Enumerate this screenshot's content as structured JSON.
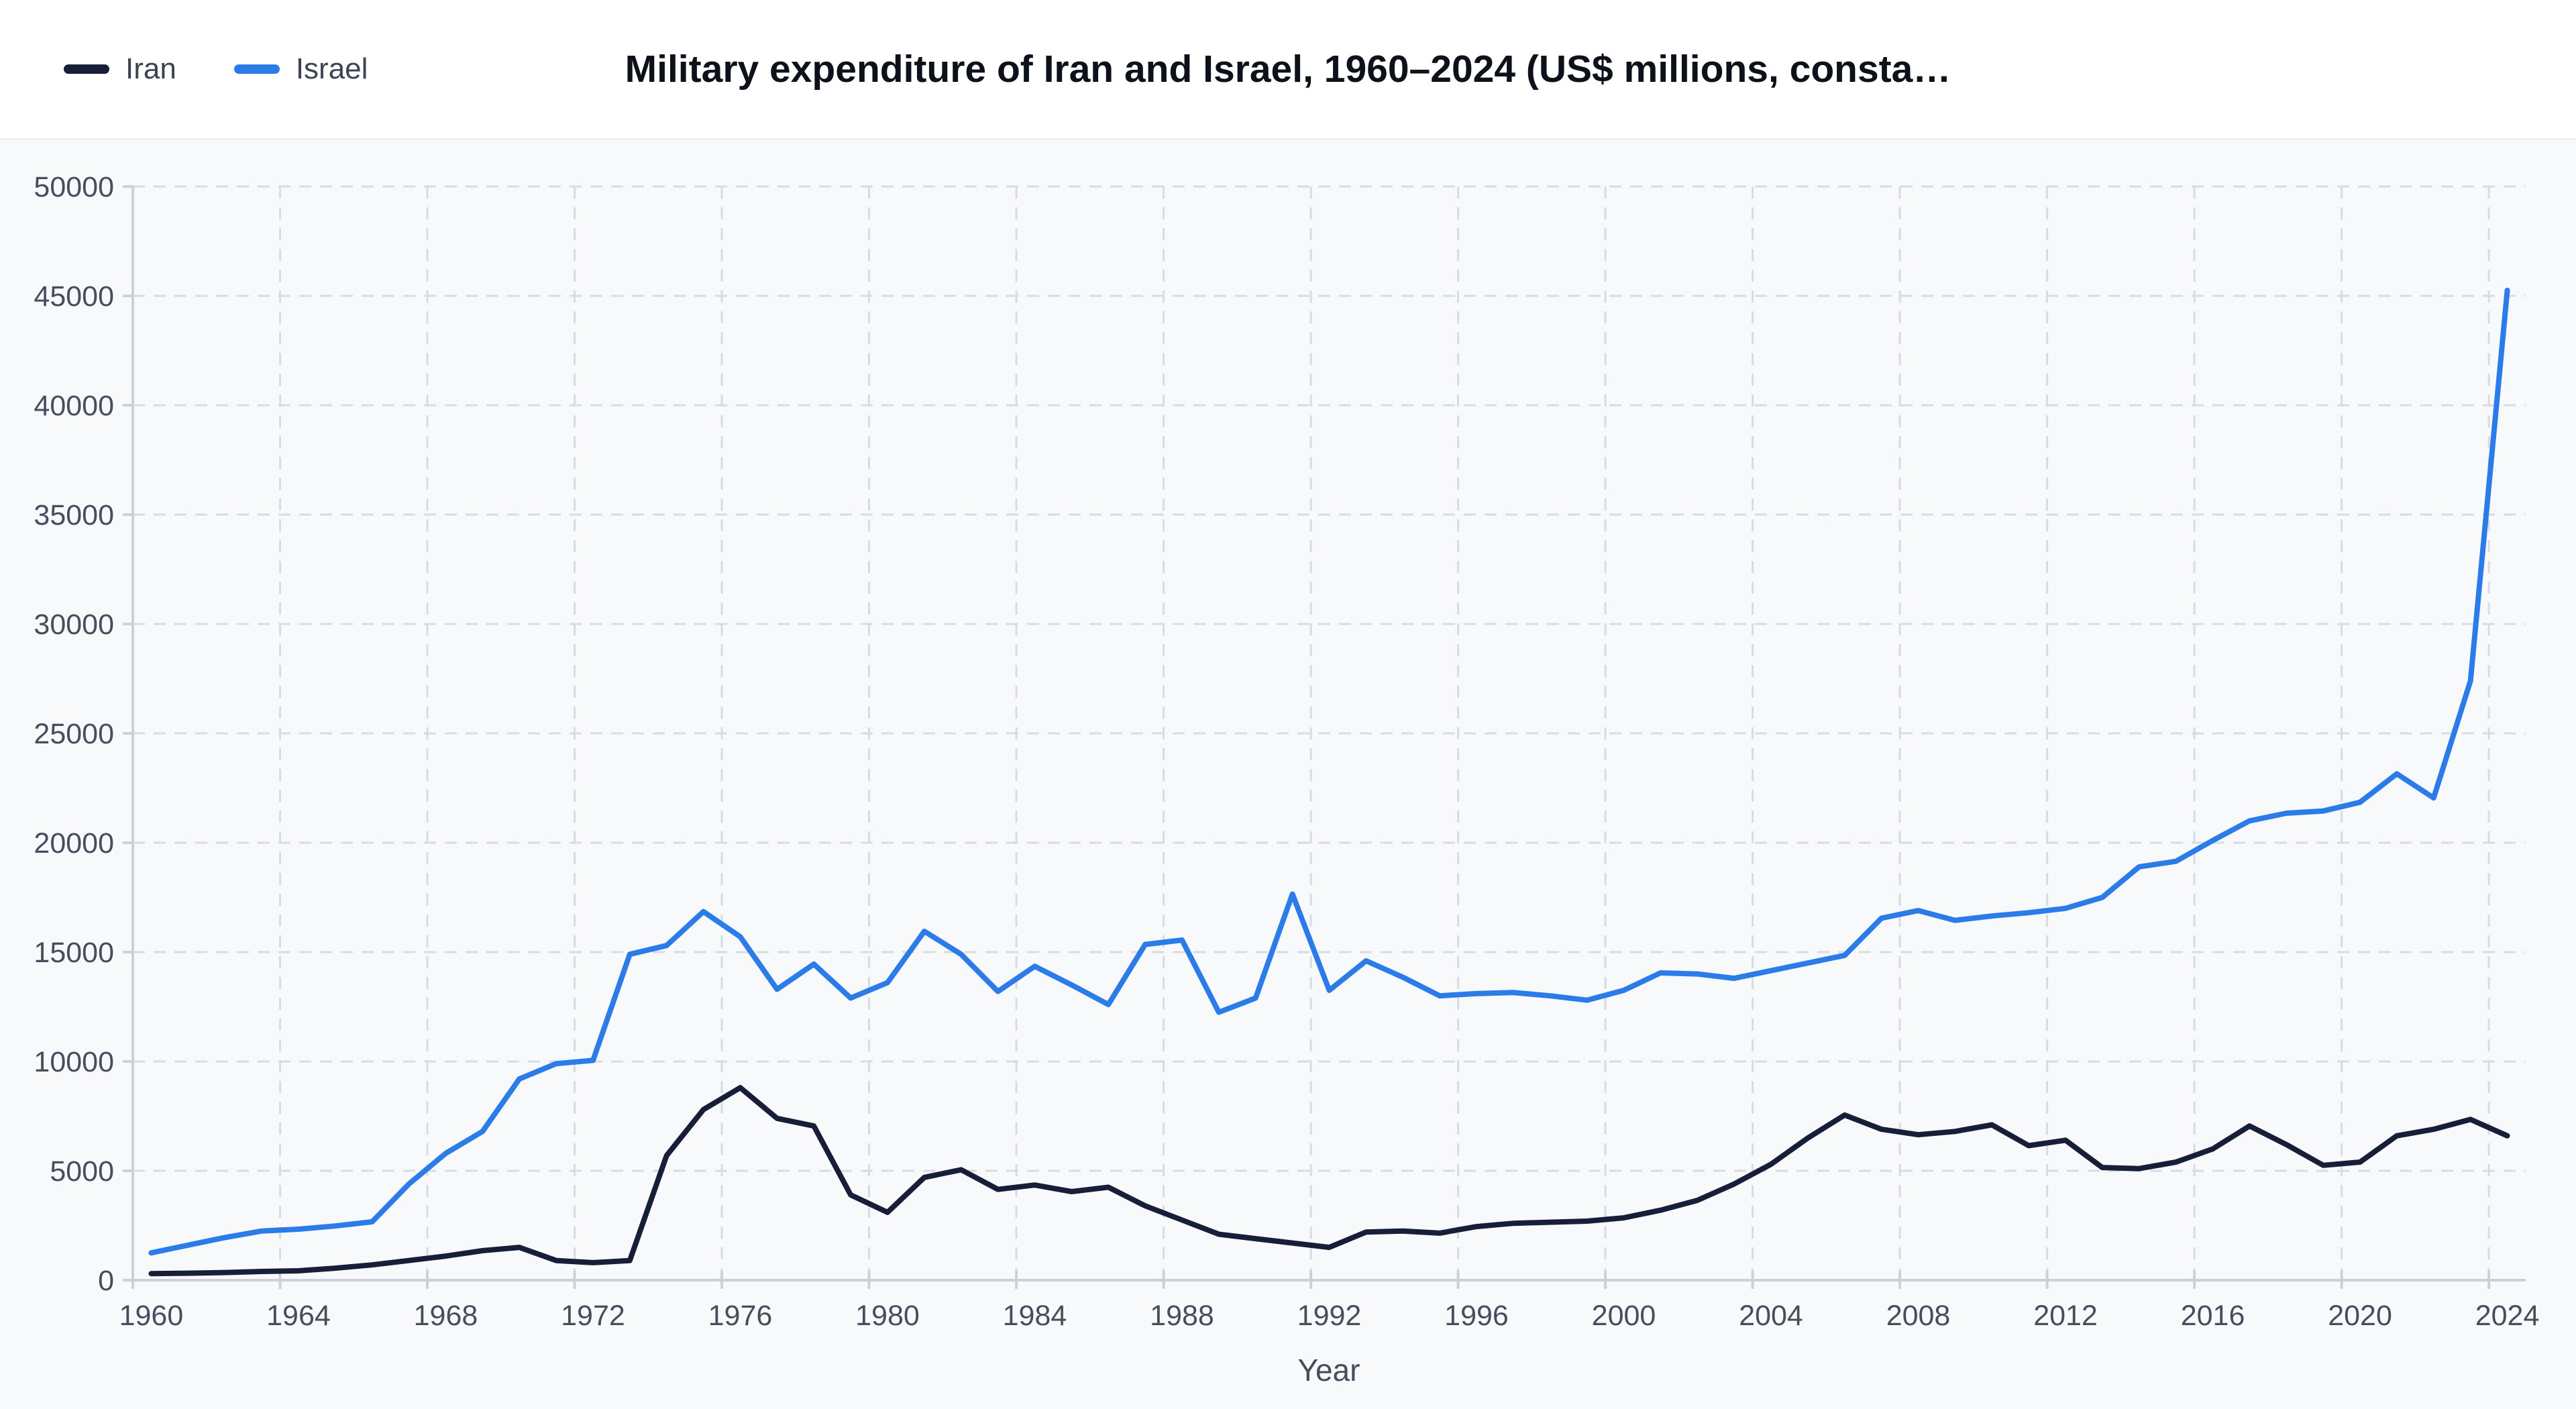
{
  "header": {
    "title": "Military expenditure of Iran and Israel, 1960–2024 (US$ millions, consta…"
  },
  "legend": [
    {
      "label": "Iran",
      "color": "#171f38"
    },
    {
      "label": "Israel",
      "color": "#2b7ce9"
    }
  ],
  "chart_data": {
    "type": "line",
    "title": "Military expenditure of Iran and Israel, 1960–2024 (US$ millions, consta…",
    "xlabel": "Year",
    "ylabel": "",
    "x_start": 1960,
    "x_end": 2024,
    "xtick_step": 4,
    "ylim": [
      0,
      50000
    ],
    "ytick_step": 5000,
    "grid": true,
    "legend_position": "top-left",
    "x": [
      1960,
      1961,
      1962,
      1963,
      1964,
      1965,
      1966,
      1967,
      1968,
      1969,
      1970,
      1971,
      1972,
      1973,
      1974,
      1975,
      1976,
      1977,
      1978,
      1979,
      1980,
      1981,
      1982,
      1983,
      1984,
      1985,
      1986,
      1987,
      1988,
      1989,
      1990,
      1991,
      1992,
      1993,
      1994,
      1995,
      1996,
      1997,
      1998,
      1999,
      2000,
      2001,
      2002,
      2003,
      2004,
      2005,
      2006,
      2007,
      2008,
      2009,
      2010,
      2011,
      2012,
      2013,
      2014,
      2015,
      2016,
      2017,
      2018,
      2019,
      2020,
      2021,
      2022,
      2023,
      2024
    ],
    "series": [
      {
        "name": "Iran",
        "color": "#171f38",
        "values": [
          300,
          320,
          350,
          400,
          430,
          550,
          700,
          900,
          1100,
          1350,
          1500,
          900,
          800,
          900,
          5700,
          7800,
          8800,
          7400,
          7050,
          3900,
          3100,
          4700,
          5050,
          4150,
          4350,
          4050,
          4250,
          3400,
          2750,
          2100,
          1900,
          1700,
          1500,
          2200,
          2250,
          2150,
          2450,
          2600,
          2650,
          2700,
          2850,
          3200,
          3650,
          4400,
          5300,
          6500,
          7550,
          6900,
          6650,
          6800,
          7100,
          6150,
          6400,
          5150,
          5100,
          5400,
          6000,
          7050,
          6200,
          5250,
          5400,
          6600,
          6900,
          7350,
          6600
        ]
      },
      {
        "name": "Israel",
        "color": "#2b7ce9",
        "values": [
          1250,
          1600,
          1950,
          2250,
          2330,
          2480,
          2670,
          4400,
          5800,
          6800,
          9200,
          9900,
          10050,
          14900,
          15300,
          16850,
          15700,
          13300,
          14450,
          12900,
          13600,
          15950,
          14900,
          13200,
          14350,
          13500,
          12600,
          15350,
          15550,
          12250,
          12900,
          17650,
          13250,
          14600,
          13850,
          13000,
          13100,
          13150,
          13000,
          12800,
          13250,
          14050,
          14000,
          13800,
          14150,
          14500,
          14850,
          16550,
          16900,
          16450,
          16650,
          16800,
          17000,
          17500,
          18900,
          19150,
          20100,
          21000,
          21350,
          21450,
          21850,
          23150,
          22050,
          27400,
          45250
        ]
      }
    ]
  },
  "style": {
    "plot_bg": "#f8f9fb",
    "header_bg": "#ffffff",
    "grid_color": "#d7dbe2",
    "axis_color": "#ccd1d9",
    "tick_text_color": "#454e5d",
    "line_width": 8
  }
}
